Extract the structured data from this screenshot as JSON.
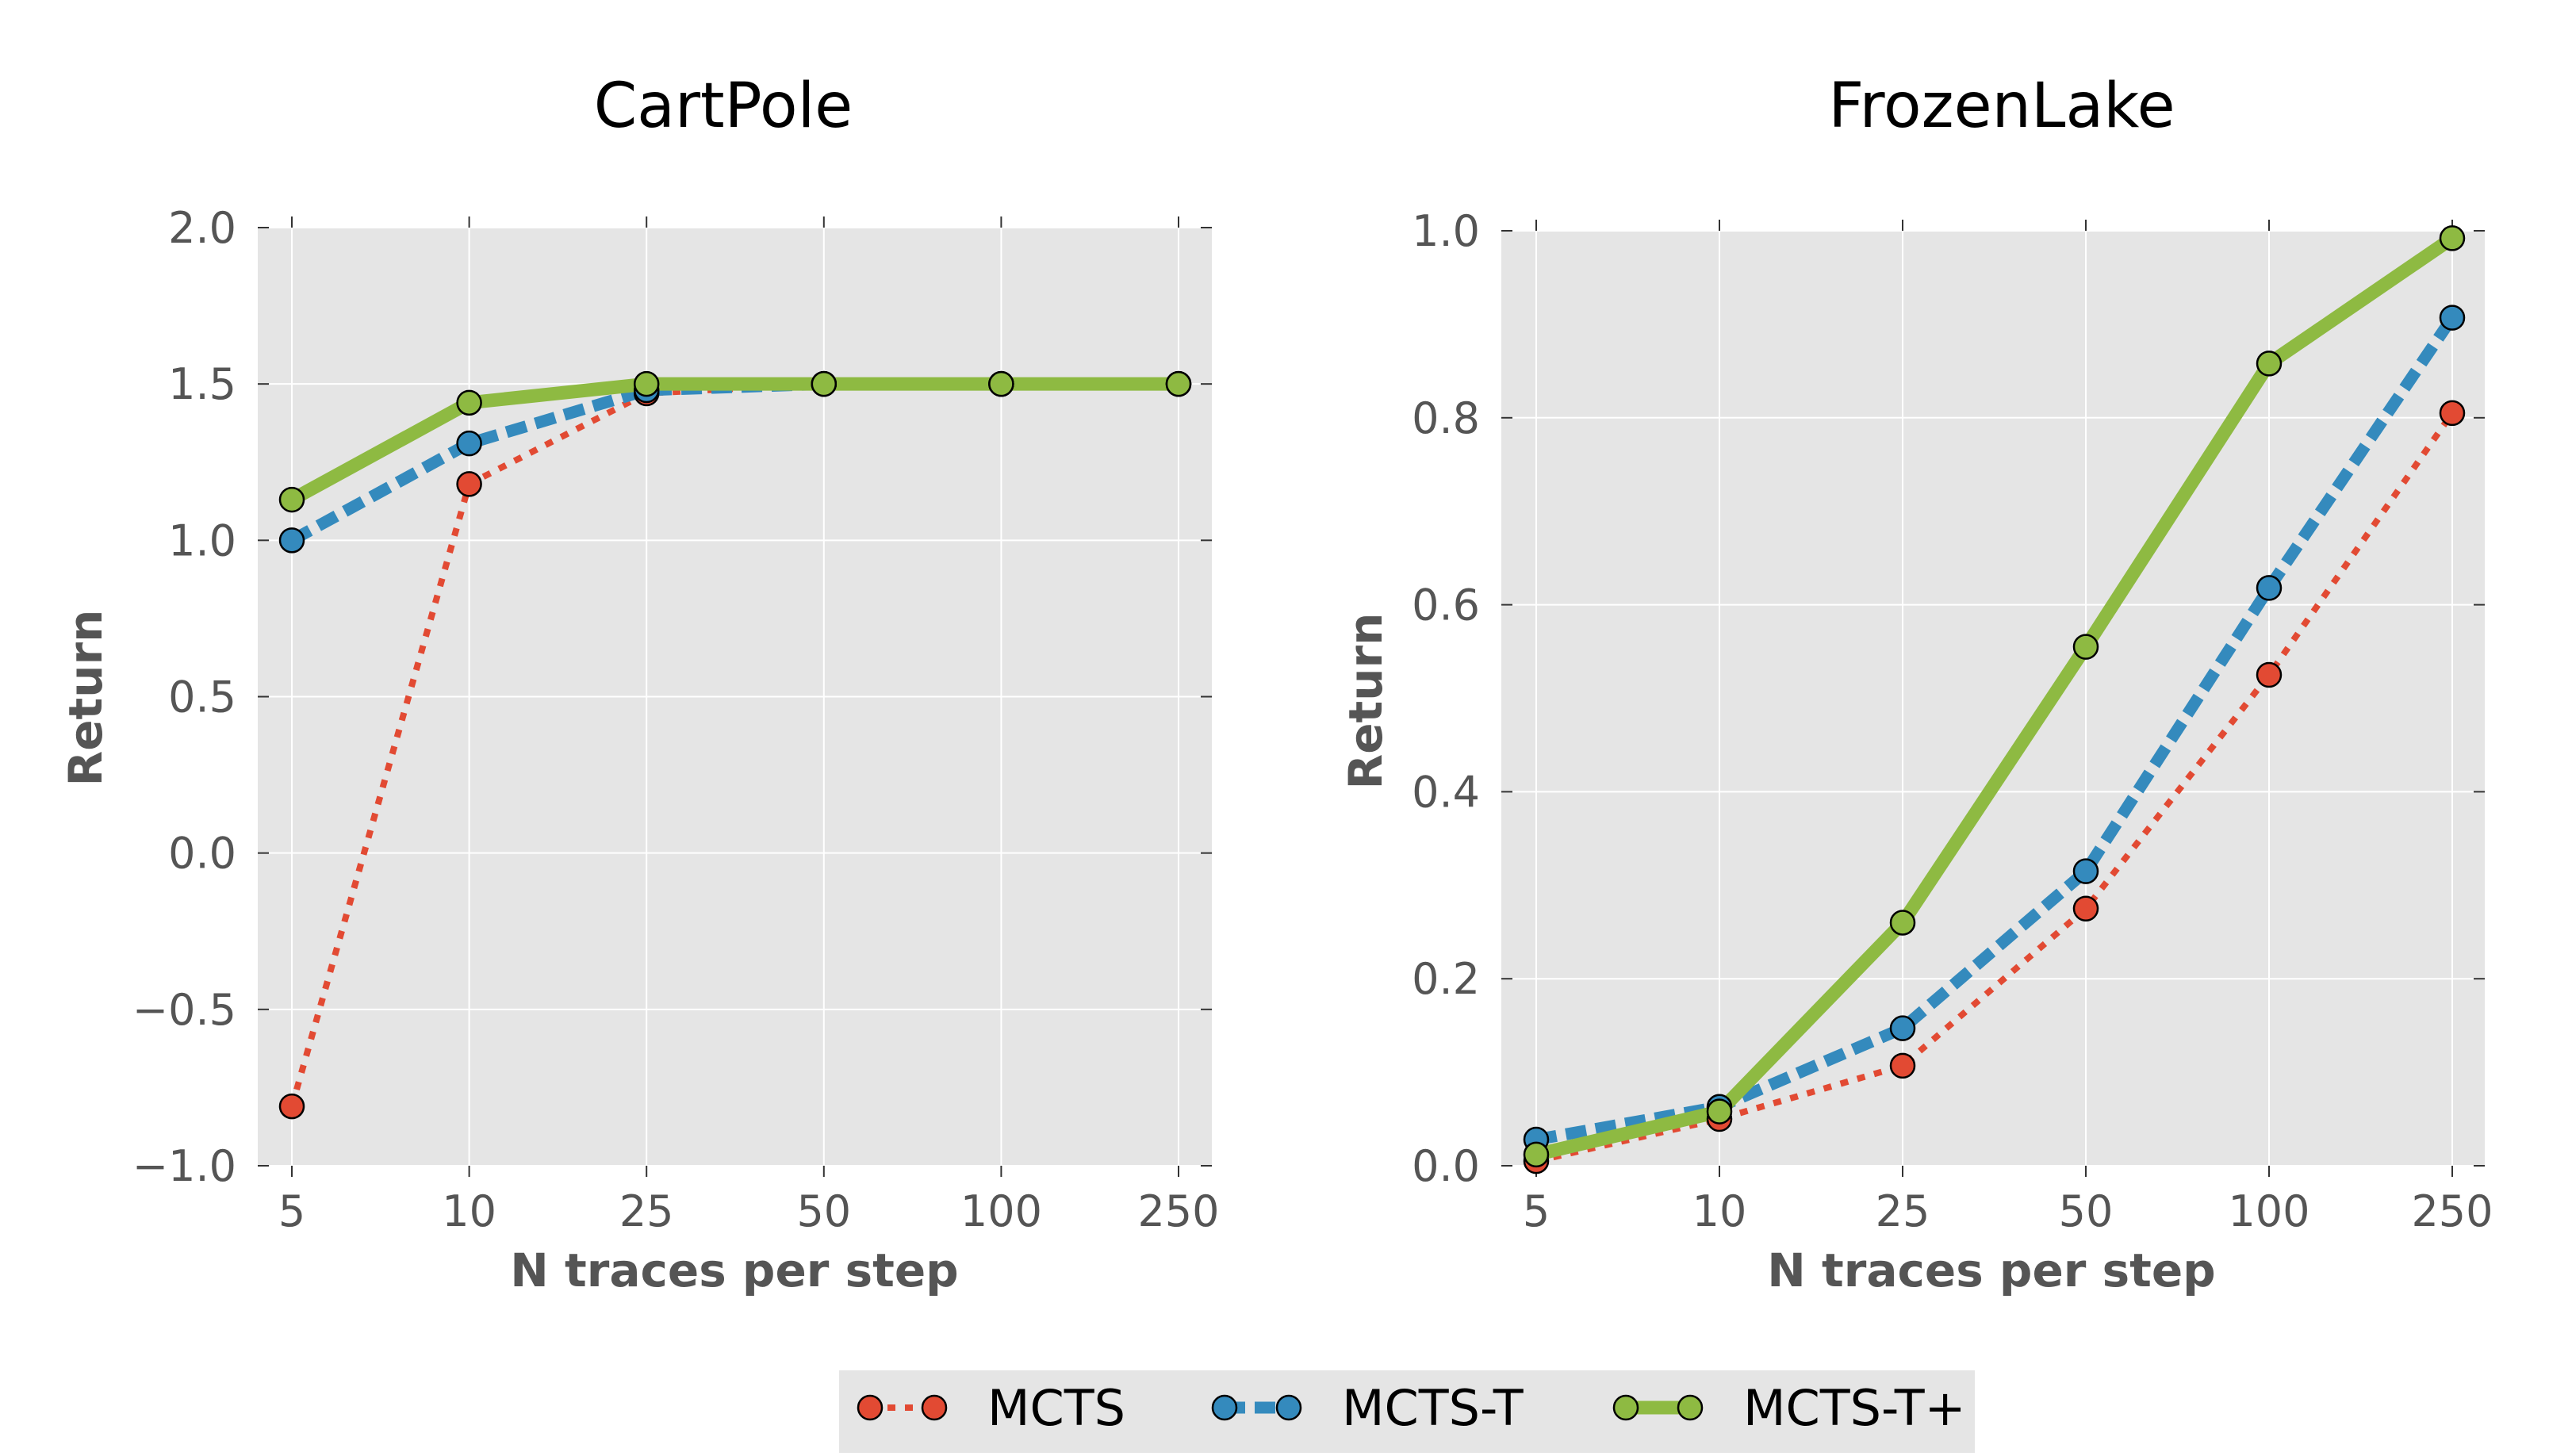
{
  "chart_data": [
    {
      "type": "line",
      "title": "CartPole",
      "xlabel": "N traces per step",
      "ylabel": "Return",
      "categories": [
        "5",
        "10",
        "25",
        "50",
        "100",
        "250"
      ],
      "yticks": [
        "2.0",
        "1.5",
        "1.0",
        "0.5",
        "0.0",
        "−0.5",
        "−1.0"
      ],
      "ylim": [
        -1.0,
        2.0
      ],
      "grid": true,
      "series": [
        {
          "name": "MCTS",
          "values": [
            -0.81,
            1.18,
            1.47,
            1.5,
            1.5,
            1.5
          ]
        },
        {
          "name": "MCTS-T",
          "values": [
            1.0,
            1.31,
            1.48,
            1.5,
            1.5,
            1.5
          ]
        },
        {
          "name": "MCTS-T+",
          "values": [
            1.13,
            1.44,
            1.5,
            1.5,
            1.5,
            1.5
          ]
        }
      ]
    },
    {
      "type": "line",
      "title": "FrozenLake",
      "xlabel": "N traces per step",
      "ylabel": "Return",
      "categories": [
        "5",
        "10",
        "25",
        "50",
        "100",
        "250"
      ],
      "yticks": [
        "1.0",
        "0.8",
        "0.6",
        "0.4",
        "0.2",
        "0.0"
      ],
      "ylim": [
        0.0,
        1.0
      ],
      "grid": true,
      "series": [
        {
          "name": "MCTS",
          "values": [
            0.005,
            0.05,
            0.107,
            0.275,
            0.525,
            0.805
          ]
        },
        {
          "name": "MCTS-T",
          "values": [
            0.028,
            0.063,
            0.147,
            0.315,
            0.618,
            0.907
          ]
        },
        {
          "name": "MCTS-T+",
          "values": [
            0.012,
            0.058,
            0.26,
            0.555,
            0.858,
            0.992
          ]
        }
      ]
    }
  ],
  "legend": {
    "position": "bottom-center",
    "entries": [
      {
        "label": "MCTS",
        "color": "#E24A33",
        "style": "dotted"
      },
      {
        "label": "MCTS-T",
        "color": "#348ABD",
        "style": "dashed"
      },
      {
        "label": "MCTS-T+",
        "color": "#8EBA42",
        "style": "solid"
      }
    ]
  },
  "colors": {
    "plot_background": "#E5E5E5",
    "grid": "#FFFFFF",
    "tick_text": "#555555",
    "MCTS": "#E24A33",
    "MCTS-T": "#348ABD",
    "MCTS-T+": "#8EBA42"
  }
}
